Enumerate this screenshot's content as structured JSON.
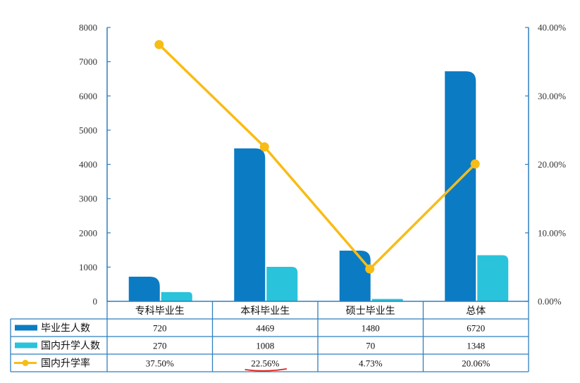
{
  "chart_data": {
    "type": "bar",
    "categories": [
      "专科毕业生",
      "本科毕业生",
      "硕士毕业生",
      "总体"
    ],
    "series": [
      {
        "name": "毕业生人数",
        "kind": "bar",
        "axis": "left",
        "values": [
          720,
          4469,
          1480,
          6720
        ],
        "labels": [
          "720",
          "4469",
          "1480",
          "6720"
        ]
      },
      {
        "name": "国内升学人数",
        "kind": "bar",
        "axis": "left",
        "values": [
          270,
          1008,
          70,
          1348
        ],
        "labels": [
          "270",
          "1008",
          "70",
          "1348"
        ]
      },
      {
        "name": "国内升学率",
        "kind": "line",
        "axis": "right",
        "values": [
          37.5,
          22.56,
          4.73,
          20.06
        ],
        "labels": [
          "37.50%",
          "22.56%",
          "4.73%",
          "20.06%"
        ]
      }
    ],
    "left_axis": {
      "ylim": [
        0,
        8000
      ],
      "ticks": [
        "0",
        "1000",
        "2000",
        "3000",
        "4000",
        "5000",
        "6000",
        "7000",
        "8000"
      ]
    },
    "right_axis": {
      "ylim": [
        0,
        40
      ],
      "ticks": [
        "0.00%",
        "10.00%",
        "20.00%",
        "30.00%",
        "40.00%"
      ]
    },
    "legend": "table-below",
    "colors": {
      "bar1": "#0b7bc4",
      "bar2": "#29c3db",
      "line": "#f9bc15",
      "axis": "#2f7fc1",
      "annotation": "#e02020"
    },
    "annotation": {
      "underlined_value": "22.56%"
    }
  }
}
